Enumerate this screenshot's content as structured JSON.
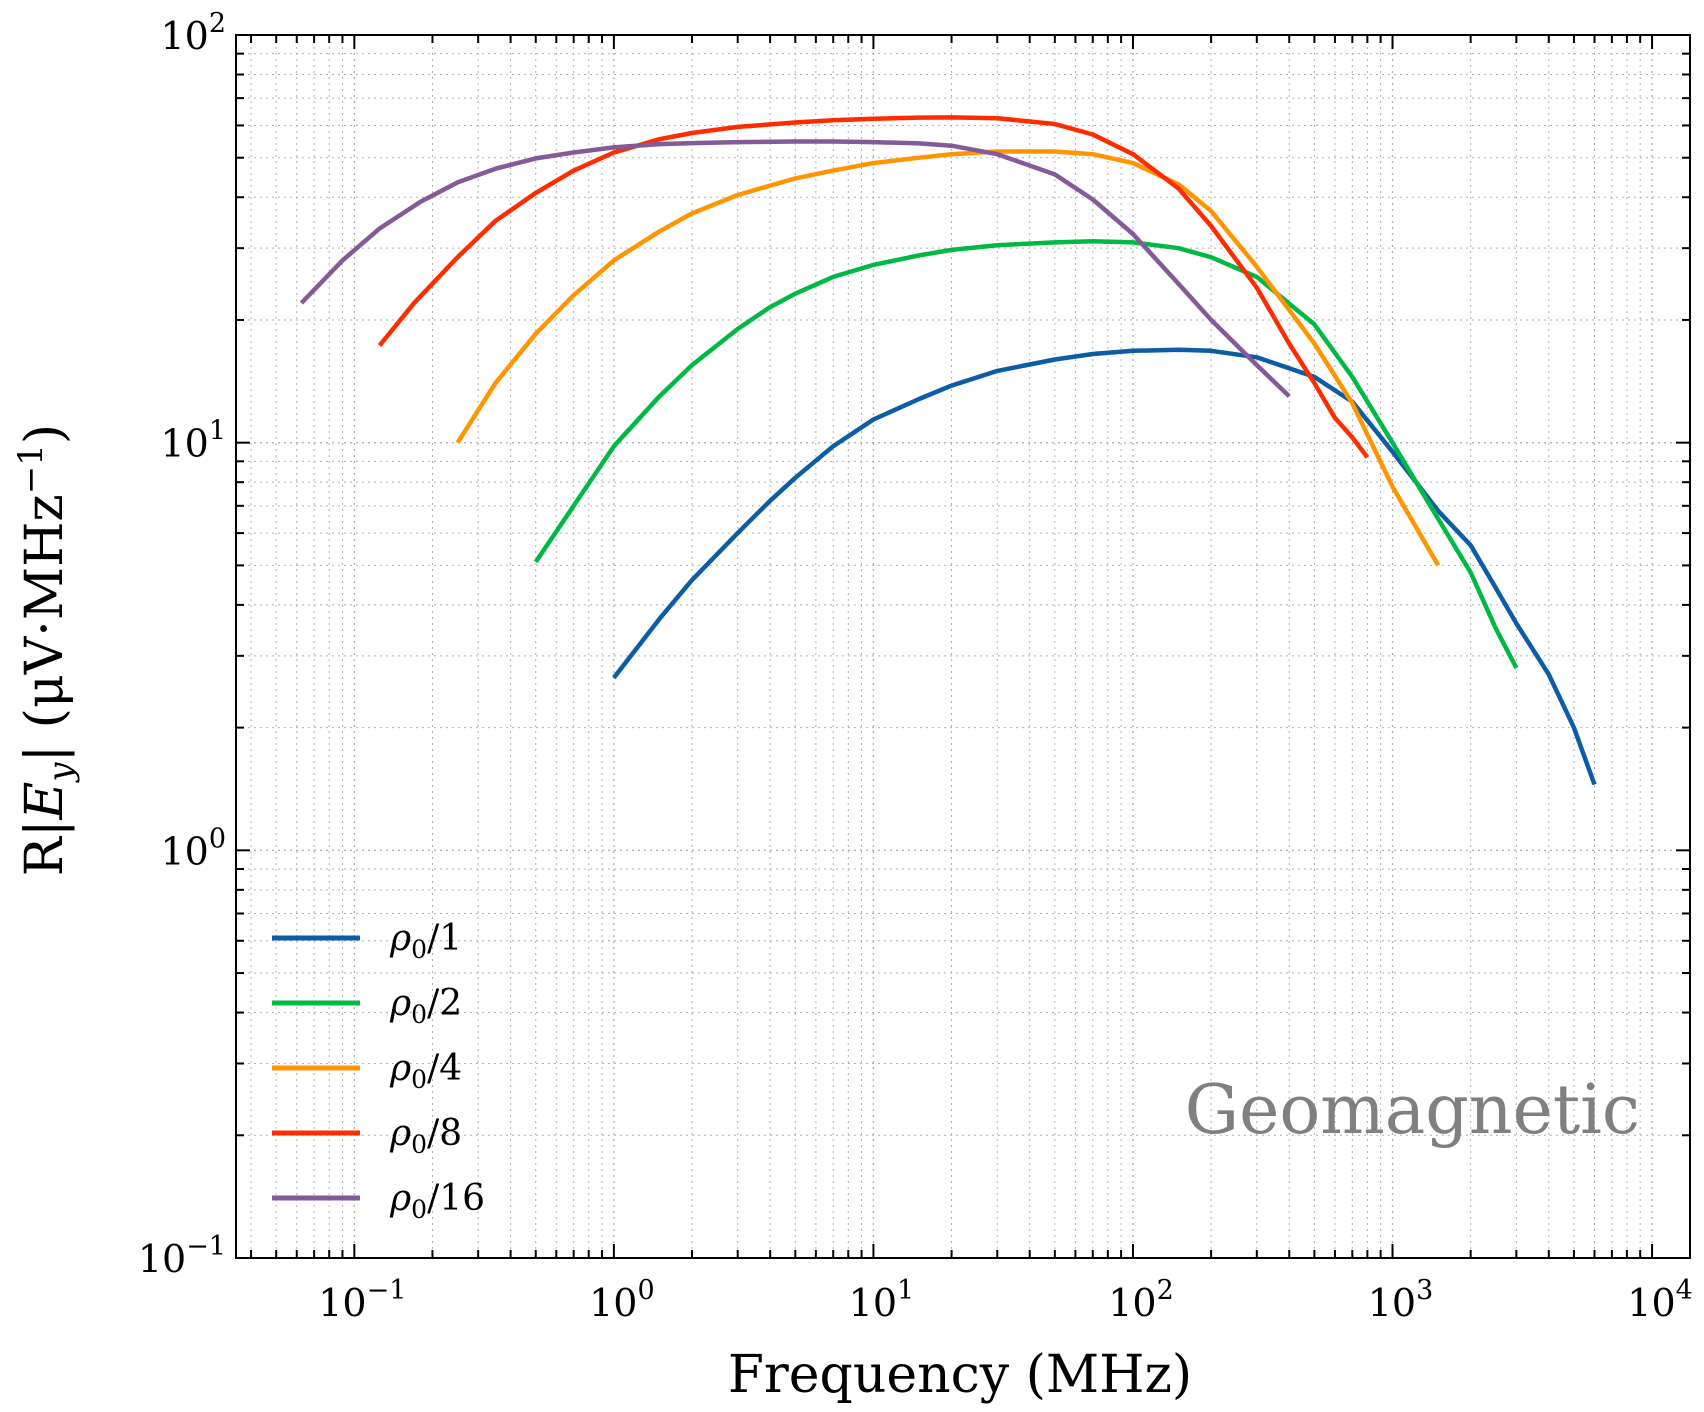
{
  "chart_data": {
    "type": "line",
    "xscale": "log",
    "yscale": "log",
    "xlim": [
      0.035,
      14000
    ],
    "ylim": [
      0.1,
      100
    ],
    "xlabel": "Frequency (MHz)",
    "ylabel": "R|E_y| (μV·MHz⁻¹)",
    "ylabel_parts": {
      "pre": "R|",
      "var": "E",
      "sub": "y",
      "mid": "| (μV·MHz",
      "sup": "−1",
      "post": ")"
    },
    "annotation": "Geomagnetic",
    "grid": true,
    "legend_position": "lower-left",
    "x_ticks": [
      {
        "value": 0.1,
        "base": "10",
        "exp": "−1"
      },
      {
        "value": 1,
        "base": "10",
        "exp": "0"
      },
      {
        "value": 10,
        "base": "10",
        "exp": "1"
      },
      {
        "value": 100,
        "base": "10",
        "exp": "2"
      },
      {
        "value": 1000,
        "base": "10",
        "exp": "3"
      },
      {
        "value": 10000,
        "base": "10",
        "exp": "4"
      }
    ],
    "y_ticks": [
      {
        "value": 0.1,
        "base": "10",
        "exp": "−1"
      },
      {
        "value": 1,
        "base": "10",
        "exp": "0"
      },
      {
        "value": 10,
        "base": "10",
        "exp": "1"
      },
      {
        "value": 100,
        "base": "10",
        "exp": "2"
      }
    ],
    "series": [
      {
        "name": "ρ₀/1",
        "label_base": "ρ",
        "label_sub": "0",
        "label_rest": "/1",
        "color": "#0c5da5",
        "x": [
          1,
          1.5,
          2,
          3,
          4,
          5,
          7,
          10,
          15,
          20,
          30,
          50,
          70,
          100,
          150,
          200,
          300,
          500,
          700,
          1000,
          1500,
          2000,
          2500,
          3000,
          4000,
          5000,
          6000
        ],
        "y": [
          2.65,
          3.7,
          4.6,
          6.0,
          7.2,
          8.2,
          9.8,
          11.4,
          12.8,
          13.8,
          15.0,
          16.0,
          16.5,
          16.8,
          16.9,
          16.8,
          16.2,
          14.5,
          12.6,
          9.5,
          6.8,
          5.6,
          4.4,
          3.6,
          2.7,
          2.0,
          1.45
        ]
      },
      {
        "name": "ρ₀/2",
        "label_base": "ρ",
        "label_sub": "0",
        "label_rest": "/2",
        "color": "#00b945",
        "x": [
          0.5,
          0.7,
          1,
          1.5,
          2,
          3,
          4,
          5,
          7,
          10,
          15,
          20,
          30,
          50,
          70,
          100,
          150,
          200,
          300,
          500,
          700,
          1000,
          1500,
          2000,
          2500,
          3000
        ],
        "y": [
          5.1,
          7.0,
          9.8,
          13.0,
          15.5,
          19.0,
          21.5,
          23.2,
          25.5,
          27.3,
          28.8,
          29.7,
          30.5,
          31.0,
          31.2,
          31.0,
          30.0,
          28.5,
          25.5,
          19.5,
          14.5,
          10.0,
          6.5,
          4.8,
          3.5,
          2.8
        ]
      },
      {
        "name": "ρ₀/4",
        "label_base": "ρ",
        "label_sub": "0",
        "label_rest": "/4",
        "color": "#ff9500",
        "x": [
          0.25,
          0.35,
          0.5,
          0.7,
          1,
          1.5,
          2,
          3,
          5,
          7,
          10,
          15,
          20,
          30,
          50,
          70,
          100,
          150,
          200,
          300,
          500,
          700,
          1000,
          1500
        ],
        "y": [
          10.0,
          14.0,
          18.5,
          23.0,
          28.0,
          33.0,
          36.5,
          40.5,
          44.5,
          46.5,
          48.5,
          50.0,
          51.0,
          51.8,
          51.8,
          51.0,
          48.5,
          43.0,
          37.0,
          27.0,
          17.5,
          12.5,
          7.8,
          5.0
        ]
      },
      {
        "name": "ρ₀/8",
        "label_base": "ρ",
        "label_sub": "0",
        "label_rest": "/8",
        "color": "#ff2c00",
        "x": [
          0.125,
          0.17,
          0.25,
          0.35,
          0.5,
          0.7,
          1,
          1.5,
          2,
          3,
          5,
          7,
          10,
          15,
          20,
          30,
          50,
          70,
          100,
          150,
          200,
          300,
          400,
          500,
          600,
          700,
          800
        ],
        "y": [
          17.3,
          22.0,
          28.5,
          35.0,
          41.0,
          46.5,
          51.5,
          55.5,
          57.5,
          59.5,
          61.0,
          61.8,
          62.3,
          62.7,
          62.8,
          62.5,
          60.5,
          57.0,
          51.0,
          42.0,
          34.0,
          24.0,
          17.5,
          14.0,
          11.5,
          10.3,
          9.2
        ]
      },
      {
        "name": "ρ₀/16",
        "label_base": "ρ",
        "label_sub": "0",
        "label_rest": "/16",
        "color": "#845b97",
        "x": [
          0.0625,
          0.09,
          0.125,
          0.18,
          0.25,
          0.35,
          0.5,
          0.7,
          1,
          1.5,
          2,
          3,
          5,
          7,
          10,
          15,
          20,
          30,
          50,
          70,
          100,
          150,
          200,
          300,
          400
        ],
        "y": [
          22.0,
          28.0,
          33.5,
          39.0,
          43.5,
          47.0,
          49.8,
          51.5,
          53.0,
          54.0,
          54.3,
          54.6,
          54.8,
          54.8,
          54.6,
          54.2,
          53.5,
          51.0,
          45.5,
          39.5,
          32.5,
          24.5,
          20.0,
          15.5,
          13.0
        ]
      }
    ]
  }
}
